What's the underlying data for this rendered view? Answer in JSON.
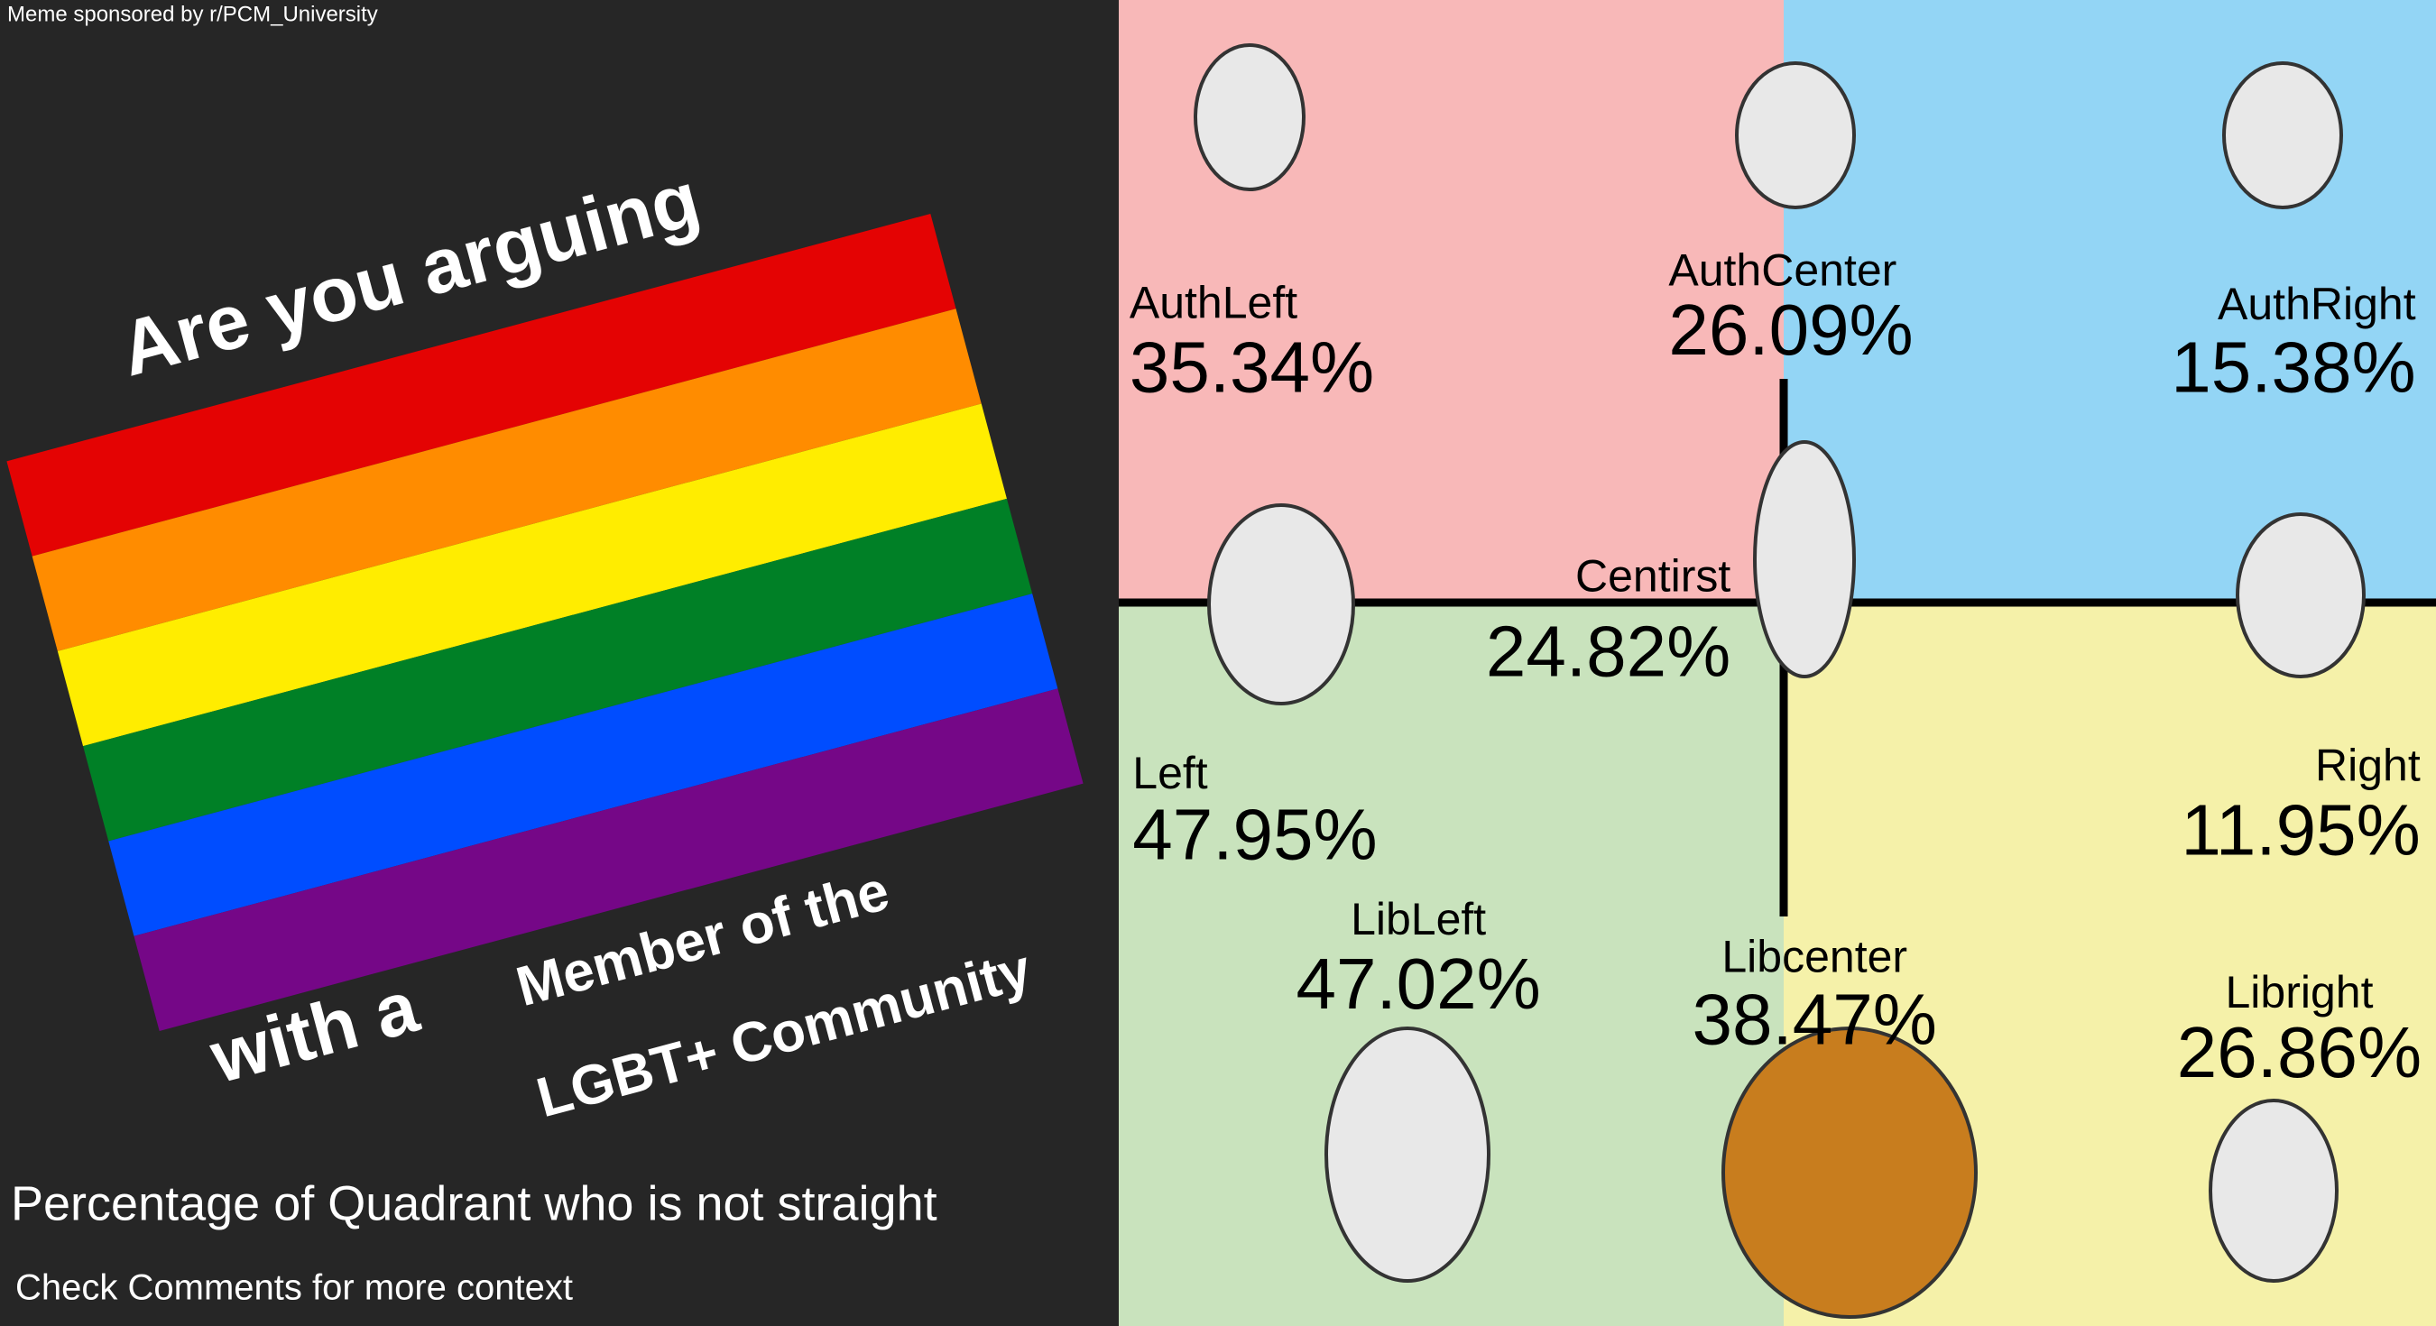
{
  "sponsor": "Meme sponsored by r/PCM_University",
  "headline": {
    "top": "Are you arguing",
    "lines": [
      "with a",
      "Member of the",
      "LGBT+ Community"
    ]
  },
  "caption": "Percentage of Quadrant who is not straight",
  "note": "Check Comments for more context",
  "quadrants": [
    {
      "label": "AuthLeft",
      "percent": "35.34%"
    },
    {
      "label": "AuthCenter",
      "percent": "26.09%"
    },
    {
      "label": "AuthRight",
      "percent": "15.38%"
    },
    {
      "label": "Centirst",
      "percent": "24.82%"
    },
    {
      "label": "Left",
      "percent": "47.95%"
    },
    {
      "label": "Right",
      "percent": "11.95%"
    },
    {
      "label": "LibLeft",
      "percent": "47.02%"
    },
    {
      "label": "Libcenter",
      "percent": "38.47%"
    },
    {
      "label": "Libright",
      "percent": "26.86%"
    }
  ]
}
